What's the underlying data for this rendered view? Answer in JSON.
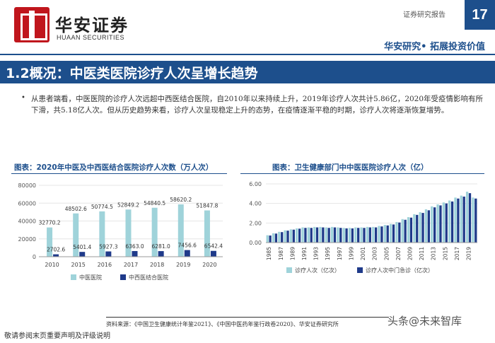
{
  "brand": {
    "name_cn": "华安证券",
    "name_en": "HUAAN SECURITIES"
  },
  "header": {
    "report_label": "证券研究报告",
    "page_number": "17",
    "slogan": "华安研究• 拓展投资价值"
  },
  "section": {
    "title": "1.2概况：中医类医院诊疗人次呈增长趋势"
  },
  "body": {
    "bullet": "•",
    "paragraph": "从患者端看，中医医院的诊疗人次远超中西医结合医院，自2010年以来持续上升，2019年诊疗人次共计5.86亿，2020年受疫情影响有所下滑，共5.18亿人次。但从历史趋势来看，诊疗人次呈现稳定上升的态势，在疫情逐渐平稳的时期，诊疗人次将逐渐恢复增势。"
  },
  "chart_data": [
    {
      "type": "bar",
      "title": "图表：2020年中医及中西医结合医院诊疗人次数（万人次）",
      "categories": [
        "2010",
        "2015",
        "2016",
        "2017",
        "2018",
        "2019",
        "2020"
      ],
      "series": [
        {
          "name": "中医医院",
          "values": [
            32770.2,
            48502.6,
            50774.5,
            52849.2,
            54840.5,
            58620.2,
            51847.8
          ],
          "labels": [
            "32770.2",
            "48502.6",
            "50774.5",
            "52849.2",
            "54840.5",
            "58620.2",
            "51847.8"
          ],
          "color": "#9fd3da"
        },
        {
          "name": "中西医结合医院",
          "values": [
            2702.6,
            5401.4,
            5927.3,
            6363.0,
            6281.0,
            7456.6,
            6542.4
          ],
          "labels": [
            "2702.6",
            "5401.4",
            "5927.3",
            "6363.0",
            "6281.0",
            "7456.6",
            "6542.4"
          ],
          "color": "#1f3a8a"
        }
      ],
      "yticks": [
        "0",
        "20000",
        "40000",
        "60000",
        "80000"
      ],
      "ylim": [
        0,
        80000
      ],
      "legend": "bottom"
    },
    {
      "type": "bar",
      "title": "图表：卫生健康部门中中医医院诊疗人次（亿）",
      "categories": [
        "1985",
        "1986",
        "1987",
        "1988",
        "1989",
        "1990",
        "1991",
        "1992",
        "1993",
        "1994",
        "1995",
        "1996",
        "1997",
        "1998",
        "1999",
        "2000",
        "2001",
        "2002",
        "2003",
        "2004",
        "2005",
        "2006",
        "2007",
        "2008",
        "2009",
        "2010",
        "2011",
        "2012",
        "2013",
        "2014",
        "2015",
        "2016",
        "2017",
        "2018",
        "2019",
        "2020"
      ],
      "tick_labels": [
        "1985",
        "1987",
        "1989",
        "1991",
        "1993",
        "1995",
        "1997",
        "1999",
        "2001",
        "2003",
        "2005",
        "2007",
        "2009",
        "2011",
        "2013",
        "2015",
        "2017",
        "2019"
      ],
      "series": [
        {
          "name": "诊疗人次（亿次）",
          "values": [
            0.75,
            0.95,
            1.1,
            1.25,
            1.35,
            1.45,
            1.55,
            1.55,
            1.6,
            1.6,
            1.55,
            1.6,
            1.55,
            1.5,
            1.5,
            1.55,
            1.55,
            1.6,
            1.6,
            1.7,
            1.8,
            1.9,
            2.1,
            2.4,
            2.6,
            2.9,
            3.1,
            3.4,
            3.7,
            3.9,
            4.1,
            4.3,
            4.6,
            4.8,
            5.2,
            4.6
          ],
          "color": "#9fd3da"
        },
        {
          "name": "诊疗人次中门急诊（亿次）",
          "values": [
            0.72,
            0.92,
            1.07,
            1.22,
            1.32,
            1.42,
            1.5,
            1.5,
            1.55,
            1.55,
            1.5,
            1.55,
            1.5,
            1.45,
            1.45,
            1.5,
            1.5,
            1.55,
            1.55,
            1.65,
            1.75,
            1.85,
            2.05,
            2.33,
            2.55,
            2.83,
            3.03,
            3.3,
            3.6,
            3.8,
            4.0,
            4.2,
            4.5,
            4.7,
            5.05,
            4.5
          ],
          "color": "#1f3a8a"
        }
      ],
      "yticks": [
        "0.00",
        "2.00",
        "4.00",
        "6.00"
      ],
      "ylim": [
        0,
        6
      ],
      "legend": "bottom"
    }
  ],
  "source": "资料来源：《中国卫生健康统计年鉴2021》、《中国中医药年鉴行政卷2020》、华安证券研究所",
  "footer": {
    "disclaimer": "敬请参阅末页重要声明及评级说明",
    "watermark": "头条@未来智库"
  }
}
